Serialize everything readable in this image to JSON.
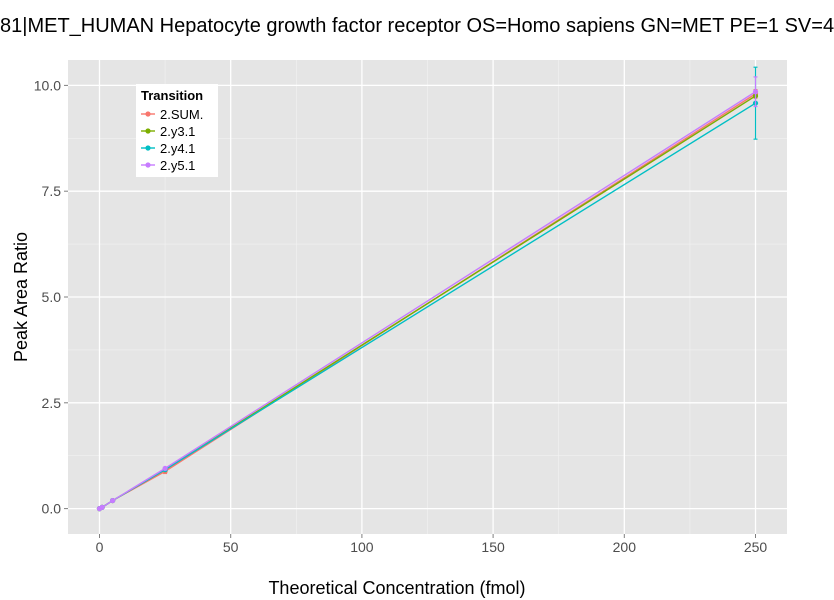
{
  "chart_data": {
    "type": "line",
    "title": "81|MET_HUMAN Hepatocyte growth factor receptor OS=Homo sapiens GN=MET PE=1 SV=4",
    "xlabel": "Theoretical Concentration (fmol)",
    "ylabel": "Peak Area Ratio",
    "xlim": [
      -12,
      262
    ],
    "ylim": [
      -0.6,
      10.6
    ],
    "x_ticks": [
      0,
      50,
      100,
      150,
      200,
      250
    ],
    "x_tick_labels": [
      "0",
      "50",
      "100",
      "150",
      "200",
      "250"
    ],
    "y_ticks": [
      0,
      2.5,
      5,
      7.5,
      10
    ],
    "y_tick_labels": [
      "0.0",
      "2.5",
      "5.0",
      "7.5",
      "10.0"
    ],
    "grid": true,
    "legend": {
      "title": "Transition",
      "position": "top-left"
    },
    "x": [
      0,
      1,
      5,
      25,
      250
    ],
    "series": [
      {
        "name": "2.SUM.",
        "color": "#F8766D",
        "values": [
          0.0,
          0.03,
          0.19,
          0.88,
          9.8
        ],
        "error": [
          0,
          0,
          0,
          0.05,
          0.1
        ]
      },
      {
        "name": "2.y3.1",
        "color": "#7CAE00",
        "values": [
          0.0,
          0.03,
          0.19,
          0.92,
          9.75
        ],
        "error": [
          0,
          0,
          0,
          0,
          0
        ]
      },
      {
        "name": "2.y4.1",
        "color": "#00BFC4",
        "values": [
          0.0,
          0.03,
          0.19,
          0.92,
          9.58
        ],
        "error": [
          0,
          0,
          0,
          0,
          0.85
        ]
      },
      {
        "name": "2.y5.1",
        "color": "#C77CFF",
        "values": [
          0.0,
          0.03,
          0.19,
          0.95,
          9.85
        ],
        "error": [
          0,
          0,
          0,
          0,
          0.35
        ]
      }
    ]
  }
}
